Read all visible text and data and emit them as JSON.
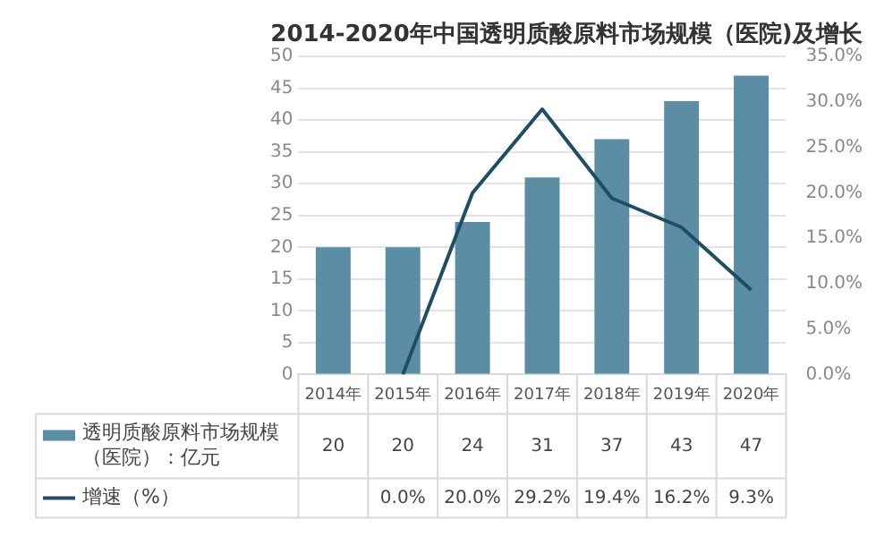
{
  "chart_data": {
    "type": "bar",
    "title": "2014-2020年中国透明质酸原料市场规模（医院)及增长",
    "categories": [
      "2014年",
      "2015年",
      "2016年",
      "2017年",
      "2018年",
      "2019年",
      "2020年"
    ],
    "series": [
      {
        "name": "透明质酸原料市场规模（医院）：亿元",
        "color": "#5b8ea4",
        "values": [
          20,
          20,
          24,
          31,
          37,
          43,
          47
        ]
      },
      {
        "name": "增速（%）",
        "type": "line",
        "axis": "y2",
        "color": "#1f4e63",
        "values": [
          null,
          0.0,
          20.0,
          29.2,
          19.4,
          16.2,
          9.3
        ],
        "value_labels": [
          null,
          "0.0%",
          "20.0%",
          "29.2%",
          "19.4%",
          "16.2%",
          "9.3%"
        ]
      }
    ],
    "ylim": [
      0,
      50
    ],
    "yticks": [
      0,
      5,
      10,
      15,
      20,
      25,
      30,
      35,
      40,
      45,
      50
    ],
    "y2lim": [
      0,
      35
    ],
    "y2ticks": [
      {
        "value": 0,
        "label": "0.0%"
      },
      {
        "value": 5,
        "label": "5.0%"
      },
      {
        "value": 10,
        "label": "10.0%"
      },
      {
        "value": 15,
        "label": "15.0%"
      },
      {
        "value": 20,
        "label": "20.0%"
      },
      {
        "value": 25,
        "label": "25.0%"
      },
      {
        "value": 30,
        "label": "30.0%"
      },
      {
        "value": 35,
        "label": "35.0%"
      }
    ],
    "grid": "y",
    "legend": "bottom",
    "data_labels": true,
    "marker": "none"
  }
}
